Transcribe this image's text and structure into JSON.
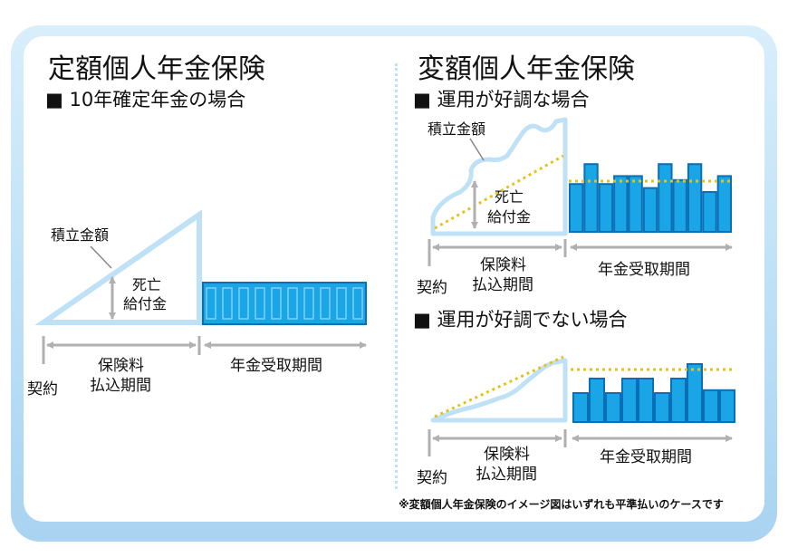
{
  "left": {
    "title": "定額個人年金保険",
    "subtitle": "■ 10年確定年金の場合",
    "accumulated_label": "積立金額",
    "death_benefit_line1": "死亡",
    "death_benefit_line2": "給付金",
    "contract_label": "契約",
    "premium_period_line1": "保険料",
    "premium_period_line2": "払込期間",
    "annuity_period_label": "年金受取期間",
    "annuity_bar_count": 10
  },
  "right": {
    "title": "変額個人年金保険",
    "good_case": {
      "subtitle": "■ 運用が好調な場合",
      "accumulated_label": "積立金額",
      "death_benefit_line1": "死亡",
      "death_benefit_line2": "給付金",
      "contract_label": "契約",
      "premium_period_line1": "保険料",
      "premium_period_line2": "払込期間",
      "annuity_period_label": "年金受取期間",
      "annuity_bar_levels": [
        0.6,
        0.85,
        0.6,
        0.7,
        0.7,
        0.55,
        0.85,
        0.65,
        0.85,
        0.5,
        0.7
      ]
    },
    "bad_case": {
      "subtitle": "■ 運用が好調でない場合",
      "contract_label": "契約",
      "premium_period_line1": "保険料",
      "premium_period_line2": "払込期間",
      "annuity_period_label": "年金受取期間",
      "annuity_bar_levels": [
        0.5,
        0.75,
        0.5,
        0.75,
        0.75,
        0.5,
        0.75,
        1.0,
        0.55,
        0.55
      ]
    },
    "note": "※変額個人年金保険のイメージ図はいずれも平準払いのケースです"
  },
  "colors": {
    "frame": "#bfe1f6",
    "triangle": "#bfe1f6",
    "bar_fill": "#1aa6e6",
    "bar_stroke": "#0a6fb4",
    "arrow": "#b0b0b0",
    "dotted": "#e5c21a",
    "text": "#111111"
  }
}
